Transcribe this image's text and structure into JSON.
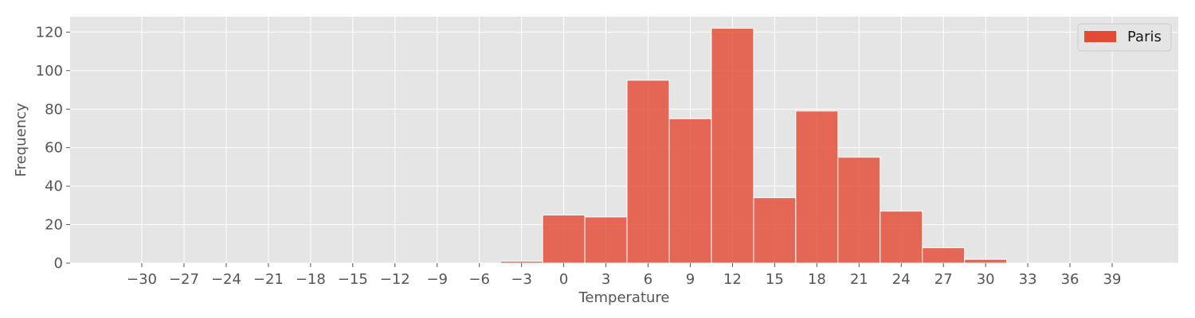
{
  "chart_data": {
    "type": "bar",
    "xlabel": "Temperature",
    "ylabel": "Frequency",
    "xlim": [
      -35.1,
      43.7
    ],
    "ylim": [
      0,
      128
    ],
    "x_ticks": [
      -30,
      -27,
      -24,
      -21,
      -18,
      -15,
      -12,
      -9,
      -6,
      -3,
      0,
      3,
      6,
      9,
      12,
      15,
      18,
      21,
      24,
      27,
      30,
      33,
      36,
      39
    ],
    "x_tick_labels": [
      "−30",
      "−27",
      "−24",
      "−21",
      "−18",
      "−15",
      "−12",
      "−9",
      "−6",
      "−3",
      "0",
      "3",
      "6",
      "9",
      "12",
      "15",
      "18",
      "21",
      "24",
      "27",
      "30",
      "33",
      "36",
      "39"
    ],
    "y_ticks": [
      0,
      20,
      40,
      60,
      80,
      100,
      120
    ],
    "y_tick_labels": [
      "0",
      "20",
      "40",
      "60",
      "80",
      "100",
      "120"
    ],
    "grid": true,
    "legend_position": "top-right",
    "series": [
      {
        "name": "Paris",
        "color": "#E24A33",
        "bins": [
          {
            "x_start": -4.5,
            "x_end": -1.5,
            "value": 1
          },
          {
            "x_start": -1.5,
            "x_end": 1.5,
            "value": 25
          },
          {
            "x_start": 1.5,
            "x_end": 4.5,
            "value": 24
          },
          {
            "x_start": 4.5,
            "x_end": 7.5,
            "value": 95
          },
          {
            "x_start": 7.5,
            "x_end": 10.5,
            "value": 75
          },
          {
            "x_start": 10.5,
            "x_end": 13.5,
            "value": 122
          },
          {
            "x_start": 13.5,
            "x_end": 16.5,
            "value": 34
          },
          {
            "x_start": 16.5,
            "x_end": 19.5,
            "value": 79
          },
          {
            "x_start": 19.5,
            "x_end": 22.5,
            "value": 55
          },
          {
            "x_start": 22.5,
            "x_end": 25.5,
            "value": 27
          },
          {
            "x_start": 25.5,
            "x_end": 28.5,
            "value": 8
          },
          {
            "x_start": 28.5,
            "x_end": 31.5,
            "value": 2
          }
        ]
      }
    ],
    "colors": {
      "plot_background": "#E5E5E5",
      "grid": "#FFFFFF",
      "bar": "#E24A33",
      "bar_edge": "#FFFFFF"
    }
  }
}
